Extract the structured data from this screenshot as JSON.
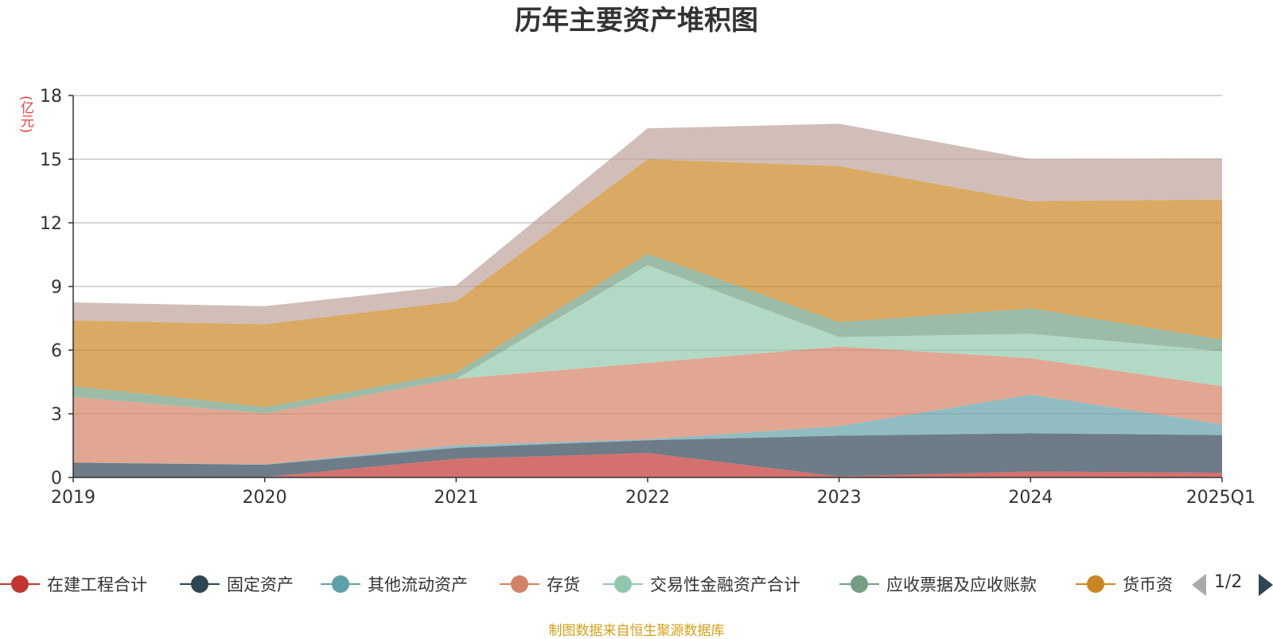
{
  "title": "历年主要资产堆积图",
  "unit_label": "(亿元)",
  "source_note": "制图数据来自恒生聚源数据库",
  "legend_pager": "1/2",
  "chart_data": {
    "type": "area",
    "stacked": true,
    "title": "历年主要资产堆积图",
    "ylabel": "(亿元)",
    "ylim": [
      0,
      18
    ],
    "yticks": [
      0,
      3,
      6,
      9,
      12,
      15,
      18
    ],
    "grid": true,
    "legend_position": "bottom",
    "categories": [
      "2019",
      "2020",
      "2021",
      "2022",
      "2023",
      "2024",
      "2025Q1"
    ],
    "series": [
      {
        "name": "在建工程合计",
        "color": "#c23531",
        "values": [
          0.0,
          0.02,
          0.88,
          1.15,
          0.05,
          0.28,
          0.22
        ]
      },
      {
        "name": "固定资产",
        "color": "#2f4554",
        "values": [
          0.7,
          0.58,
          0.52,
          0.6,
          1.92,
          1.8,
          1.78
        ]
      },
      {
        "name": "其他流动资产",
        "color": "#61a0a8",
        "values": [
          0.0,
          0.02,
          0.12,
          0.05,
          0.45,
          1.82,
          0.5
        ]
      },
      {
        "name": "存货",
        "color": "#d48265",
        "values": [
          3.1,
          2.4,
          3.13,
          3.6,
          3.75,
          1.72,
          1.8
        ]
      },
      {
        "name": "交易性金融资产合计",
        "color": "#91c7ae",
        "values": [
          0.0,
          0.0,
          0.0,
          4.6,
          0.45,
          1.15,
          1.65
        ]
      },
      {
        "name": "应收票据及应收账款",
        "color": "#749f83",
        "values": [
          0.5,
          0.3,
          0.3,
          0.55,
          0.7,
          1.2,
          0.55
        ]
      },
      {
        "name": "货币资金",
        "color": "#ca8622",
        "values": [
          3.1,
          3.9,
          3.35,
          4.45,
          7.35,
          5.05,
          6.6
        ]
      },
      {
        "name": "",
        "color": "#bda29a",
        "values": [
          0.85,
          0.85,
          0.75,
          1.45,
          2.0,
          1.98,
          1.93
        ]
      }
    ]
  },
  "legend": [
    {
      "label": "在建工程合计",
      "color": "#c23531"
    },
    {
      "label": "固定资产",
      "color": "#2f4554"
    },
    {
      "label": "其他流动资产",
      "color": "#61a0a8"
    },
    {
      "label": "存货",
      "color": "#d48265"
    },
    {
      "label": "交易性金融资产合计",
      "color": "#91c7ae"
    },
    {
      "label": "应收票据及应收账款",
      "color": "#749f83"
    },
    {
      "label": "货币资",
      "color": "#ca8622"
    }
  ]
}
